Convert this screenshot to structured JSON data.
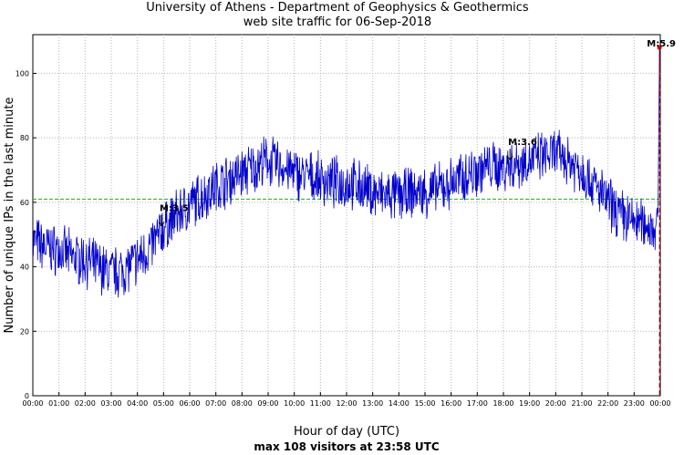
{
  "chart_data": {
    "type": "line",
    "title": "University of Athens - Department of Geophysics & Geothermics",
    "subtitle": "web site traffic for 06-Sep-2018",
    "xlabel": "Hour of day (UTC)",
    "ylabel": "Number of unique IPs in the last minute",
    "summary": "max 108 visitors at 23:58 UTC",
    "xlim": [
      0,
      24
    ],
    "ylim": [
      0,
      112
    ],
    "x_ticks": [
      "00:00",
      "01:00",
      "02:00",
      "03:00",
      "04:00",
      "05:00",
      "06:00",
      "07:00",
      "08:00",
      "09:00",
      "10:00",
      "11:00",
      "12:00",
      "13:00",
      "14:00",
      "15:00",
      "16:00",
      "17:00",
      "18:00",
      "19:00",
      "20:00",
      "21:00",
      "22:00",
      "23:00",
      "00:00"
    ],
    "y_ticks": [
      0,
      20,
      40,
      60,
      80,
      100
    ],
    "grid": true,
    "reference_line": {
      "value": 61,
      "color": "#22aa22",
      "style": "dashed"
    },
    "series": [
      {
        "name": "visitors",
        "color": "#0000cc",
        "hours": [
          0,
          0.5,
          1,
          1.5,
          2,
          2.5,
          3,
          3.5,
          4,
          4.5,
          5,
          5.5,
          6,
          6.5,
          7,
          7.5,
          8,
          8.5,
          9,
          9.5,
          10,
          10.5,
          11,
          11.5,
          12,
          12.5,
          13,
          13.5,
          14,
          14.5,
          15,
          15.5,
          16,
          16.5,
          17,
          17.5,
          18,
          18.5,
          19,
          19.5,
          20,
          20.5,
          21,
          21.5,
          22,
          22.5,
          23,
          23.5,
          23.93
        ],
        "values": [
          48,
          46,
          45,
          43,
          42,
          40,
          38,
          39,
          42,
          46,
          52,
          56,
          59,
          62,
          65,
          67,
          69,
          71,
          73,
          71,
          69,
          68,
          67,
          66,
          66,
          65,
          63,
          62,
          62,
          63,
          63,
          64,
          66,
          68,
          70,
          71,
          71,
          72,
          73,
          74,
          75,
          73,
          70,
          65,
          60,
          56,
          54,
          53,
          52
        ]
      }
    ],
    "peak": {
      "hour": 23.97,
      "value": 108,
      "label": "M:5.9",
      "color": "#cc0000"
    },
    "earthquakes": [
      {
        "hour": 4.92,
        "label": "M:3.5"
      },
      {
        "hour": 18.25,
        "label": "M:3.6"
      },
      {
        "hour": 23.97,
        "label": "M:5.9"
      }
    ]
  }
}
